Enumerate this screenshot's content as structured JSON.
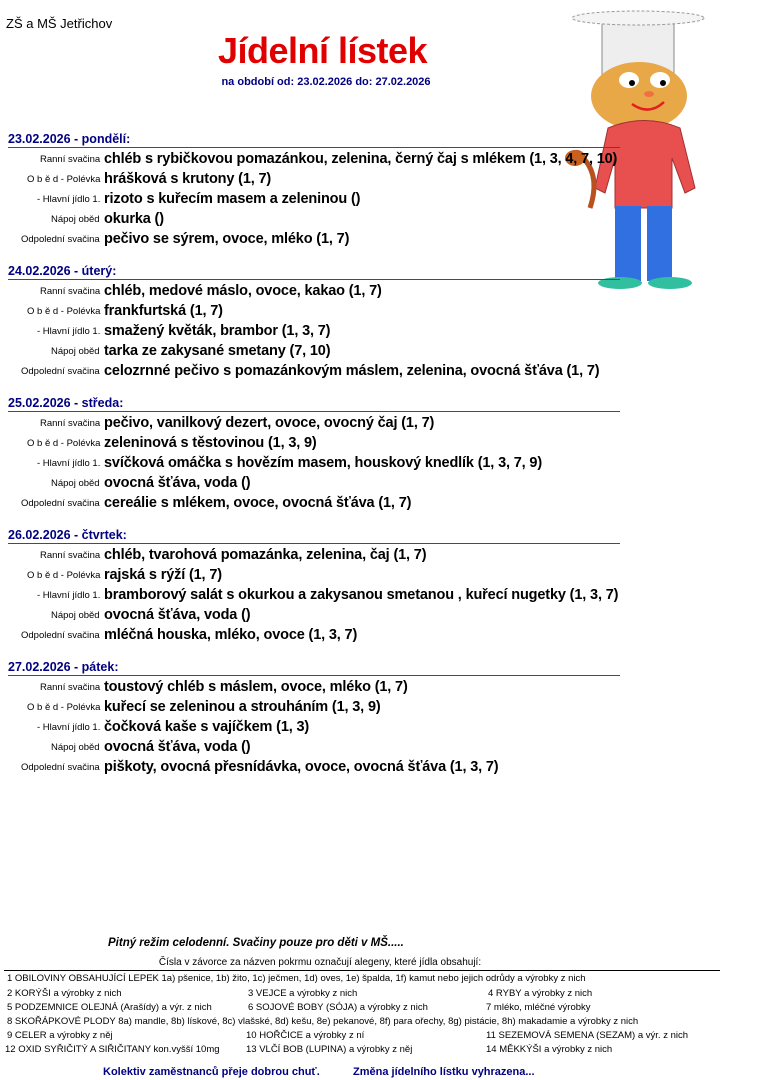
{
  "school": "ZŠ a MŠ Jetřichov",
  "title": "Jídelní lístek",
  "period": "na období od: 23.02.2026  do: 27.02.2026",
  "labels": {
    "ranni": "Ranní svačina",
    "polevka": "O b ě d  - Polévka",
    "hlavni": "- Hlavní jídlo 1.",
    "napoj": "Nápoj oběd",
    "odpoledni": "Odpolední svačina"
  },
  "days": [
    {
      "header": "23.02.2026  -  pondělí:",
      "items": [
        "chléb s rybičkovou pomazánkou, zelenina, černý čaj s mlékem   (1, 3, 4, 7, 10)",
        "hrášková s krutony   (1, 7)",
        "rizoto s kuřecím masem a zeleninou   ()",
        "okurka   ()",
        "pečivo se sýrem, ovoce, mléko   (1, 7)"
      ]
    },
    {
      "header": "24.02.2026  -  úterý:",
      "items": [
        "chléb, medové máslo, ovoce, kakao   (1, 7)",
        "frankfurtská   (1, 7)",
        "smažený květák, brambor   (1, 3, 7)",
        "tarka ze zakysané smetany   (7, 10)",
        "celozrnné pečivo s pomazánkovým máslem, zelenina, ovocná šťáva   (1, 7)"
      ]
    },
    {
      "header": "25.02.2026  -  středa:",
      "items": [
        "pečivo, vanilkový dezert, ovoce, ovocný čaj   (1, 7)",
        "zeleninová s těstovinou   (1, 3, 9)",
        "svíčková omáčka s hovězím masem, houskový knedlík   (1, 3, 7, 9)",
        "ovocná šťáva, voda   ()",
        "cereálie s mlékem, ovoce, ovocná šťáva   (1, 7)"
      ]
    },
    {
      "header": "26.02.2026  -  čtvrtek:",
      "items": [
        "chléb, tvarohová pomazánka, zelenina, čaj   (1, 7)",
        "rajská s rýží   (1, 7)",
        "bramborový salát s okurkou a zakysanou smetanou , kuřecí nugetky   (1, 3, 7)",
        "ovocná šťáva, voda   ()",
        "mléčná houska, mléko, ovoce   (1, 3, 7)"
      ]
    },
    {
      "header": "27.02.2026  -  pátek:",
      "items": [
        "toustový chléb s máslem, ovoce, mléko   (1, 7)",
        "kuřecí se zeleninou a strouháním   (1, 3, 9)",
        "čočková kaše s vajíčkem   (1, 3)",
        " ovocná šťáva, voda   ()",
        "piškoty, ovocná přesnídávka, ovoce, ovocná šťáva   (1, 3, 7)"
      ]
    }
  ],
  "note": "Pitný režim celodenní. Svačiny pouze pro děti v MŠ.....",
  "legend_header": "Čísla v závorce za názven pokrmu označují alegeny, které jídla obsahují:",
  "legend": {
    "a1": "1 OBILOVINY OBSAHUJÍCÍ LEPEK 1a) pšenice, 1b) žito, 1c) ječmen, 1d) oves, 1e) špalda, 1f) kamut nebo jejich odrůdy a výrobky z nich",
    "a2": "2 KORÝŠI a výrobky z nich",
    "a3": "3 VEJCE a výrobky z nich",
    "a4": "4 RYBY a výrobky z nich",
    "a5": "5 PODZEMNICE OLEJNÁ (Arašídy) a výr. z nich",
    "a6": "6 SOJOVÉ BOBY (SÓJA) a výrobky z nich",
    "a7": "7 mléko, mléčné výrobky",
    "a8": "8 SKOŘÁPKOVÉ PLODY 8a) mandle, 8b) lískové, 8c) vlašské, 8d) kešu, 8e) pekanové, 8f) para ořechy, 8g) pistácie, 8h) makadamie a výrobky z nich",
    "a9": "9 CELER a výrobky z něj",
    "a10": "10 HOŘČICE a výrobky z ní",
    "a11": "11 SEZEMOVÁ SEMENA (SEZAM) a výr. z nich",
    "a12": "12 OXID SYŘIČITÝ A SIŘIČITANY kon.vyšší 10mg",
    "a13": "13 VLČÍ BOB (LUPINA) a výrobky z něj",
    "a14": "14 MĚKKÝŠI a výrobky z nich"
  },
  "footer": {
    "left": "Kolektiv zaměstnanců přeje dobrou chuť.",
    "right": "Změna jídelního lístku vyhrazena..."
  }
}
